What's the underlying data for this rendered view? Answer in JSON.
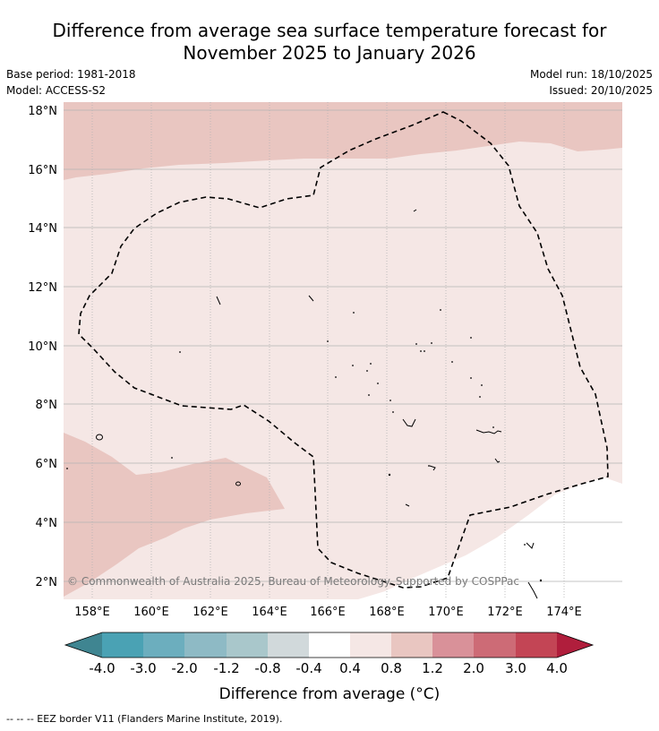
{
  "header": {
    "title_line1": "Difference from average sea surface temperature forecast for",
    "title_line2": "November 2025 to January 2026",
    "base_period": "Base period: 1981-2018",
    "model": "Model: ACCESS-S2",
    "model_run": "Model run: 18/10/2025",
    "issued": "Issued: 20/10/2025"
  },
  "map": {
    "latitude_labels": [
      "18°N",
      "16°N",
      "14°N",
      "12°N",
      "10°N",
      "8°N",
      "6°N",
      "4°N",
      "2°N"
    ],
    "longitude_labels": [
      "158°E",
      "160°E",
      "162°E",
      "164°E",
      "166°E",
      "168°E",
      "170°E",
      "172°E",
      "174°E"
    ],
    "copyright": "© Commonwealth of Australia 2025, Bureau of Meteorology. Supported by COSPPac",
    "colors": {
      "anomaly_0_4_to_0_8": "#f5e7e5",
      "anomaly_0_8_to_1_2": "#e9c6c1",
      "gridline": "#b3b3b3",
      "eez_border": "#000000"
    }
  },
  "colorbar": {
    "title": "Difference from average (°C)",
    "tick_labels": [
      "-4.0",
      "-3.0",
      "-2.0",
      "-1.2",
      "-0.8",
      "-0.4",
      "0.4",
      "0.8",
      "1.2",
      "2.0",
      "3.0",
      "4.0"
    ],
    "colors": [
      "#3f8591",
      "#4aa2b4",
      "#6caebe",
      "#8ebac5",
      "#a9c7cb",
      "#d1d9db",
      "#ffffff",
      "#f5e7e5",
      "#e9c6c1",
      "#d99199",
      "#cd6b76",
      "#c34555",
      "#b01e3c"
    ]
  },
  "footnote": "--  --  -- EEZ border V11 (Flanders Marine Institute, 2019)."
}
